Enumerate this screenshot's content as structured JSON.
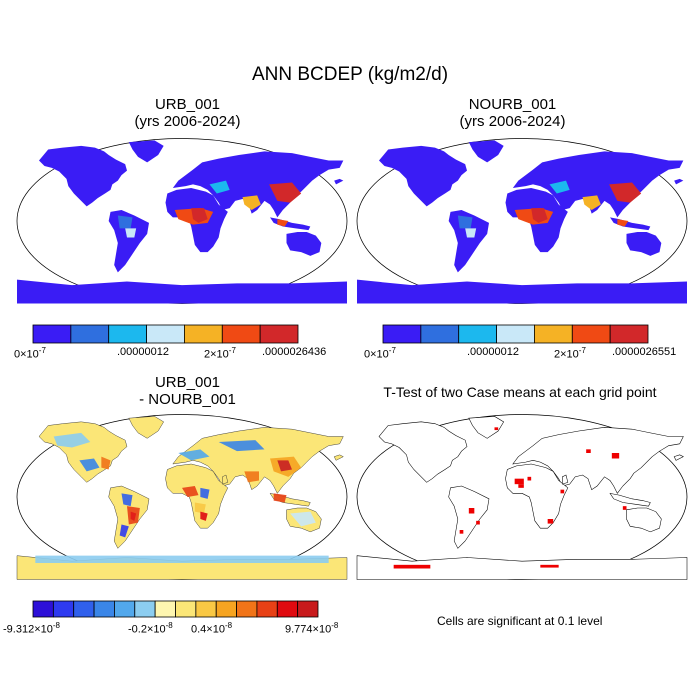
{
  "title": "ANN BCDEP (kg/m2/d)",
  "panels": {
    "urb": {
      "title_line1": "URB_001",
      "title_line2": "(yrs 2006-2024)",
      "colorbar": {
        "colors": [
          "#3a1cf5",
          "#2f6fdf",
          "#1cb8ee",
          "#c9e8f8",
          "#f5b225",
          "#f04a14",
          "#d2282a"
        ],
        "labels": {
          "min_base": "0×10",
          "min_exp": "-7",
          "mid": ".00000012",
          "mid2_base": "2×10",
          "mid2_exp": "-7",
          "max": ".0000026436"
        }
      }
    },
    "nourb": {
      "title_line1": "NOURB_001",
      "title_line2": "(yrs 2006-2024)",
      "colorbar": {
        "colors": [
          "#3a1cf5",
          "#2f6fdf",
          "#1cb8ee",
          "#c9e8f8",
          "#f5b225",
          "#f04a14",
          "#d2282a"
        ],
        "labels": {
          "min_base": "0×10",
          "min_exp": "-7",
          "mid": ".00000012",
          "mid2_base": "2×10",
          "mid2_exp": "-7",
          "max": ".0000026551"
        }
      }
    },
    "diff": {
      "title_line1": "URB_001",
      "title_line2": "- NOURB_001",
      "colorbar": {
        "colors": [
          "#2d10d8",
          "#2e3af0",
          "#3060ec",
          "#3a86e8",
          "#52a8ec",
          "#8ccdf0",
          "#fef6b0",
          "#fbe677",
          "#f9c844",
          "#f6a421",
          "#f17418",
          "#e84116",
          "#e00a10",
          "#c81a1c"
        ],
        "labels": {
          "min_base": "-9.312×10",
          "min_exp": "-8",
          "mid_base": "-0.2×10",
          "mid_exp": "-8",
          "mid2_base": "0.4×10",
          "mid2_exp": "-8",
          "max_base": "9.774×10",
          "max_exp": "-8"
        }
      }
    },
    "ttest": {
      "title": "T-Test of two Case means at each grid point",
      "note": "Cells are significant at 0.1 level",
      "marker_color": "#ee0000"
    }
  }
}
